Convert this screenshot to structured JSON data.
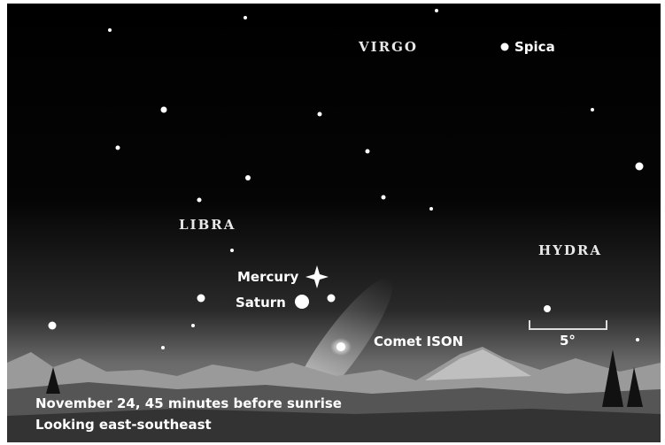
{
  "labels": {
    "virgo": "VIRGO",
    "spica": "Spica",
    "libra": "LIBRA",
    "hydra": "HYDRA",
    "mercury": "Mercury",
    "saturn": "Saturn",
    "comet": "Comet ISON",
    "scale": "5°"
  },
  "caption": [
    "November 24, 45 minutes before sunrise",
    "Looking east-southeast"
  ]
}
